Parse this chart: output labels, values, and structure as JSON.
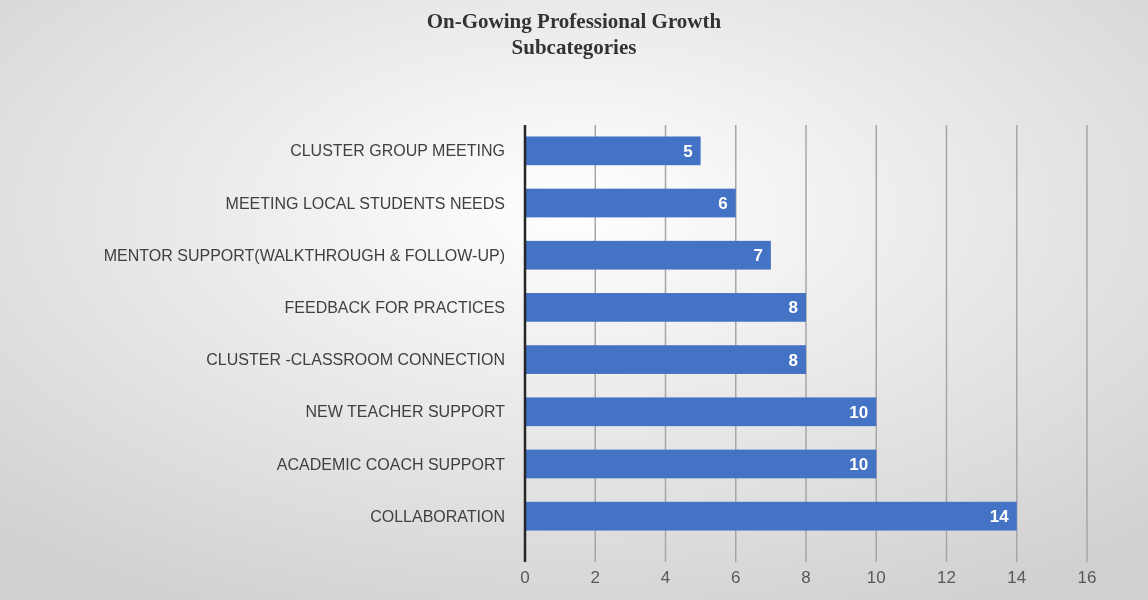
{
  "chart_data": {
    "type": "bar",
    "orientation": "horizontal",
    "title": "On-Gowing Professional Growth Subcategories",
    "categories": [
      "CLUSTER GROUP MEETING",
      "MEETING LOCAL STUDENTS NEEDS",
      "MENTOR SUPPORT(WALKTHROUGH & FOLLOW-UP)",
      "FEEDBACK FOR PRACTICES",
      "CLUSTER -CLASSROOM CONNECTION",
      "NEW TEACHER SUPPORT",
      "ACADEMIC COACH SUPPORT",
      "COLLABORATION"
    ],
    "values": [
      5,
      6,
      7,
      8,
      8,
      10,
      10,
      14
    ],
    "color": "#4472c4",
    "xlim": [
      0,
      16
    ],
    "xticks": [
      0,
      2,
      4,
      6,
      8,
      10,
      12,
      14,
      16
    ],
    "grid": "x",
    "data_labels": true
  }
}
